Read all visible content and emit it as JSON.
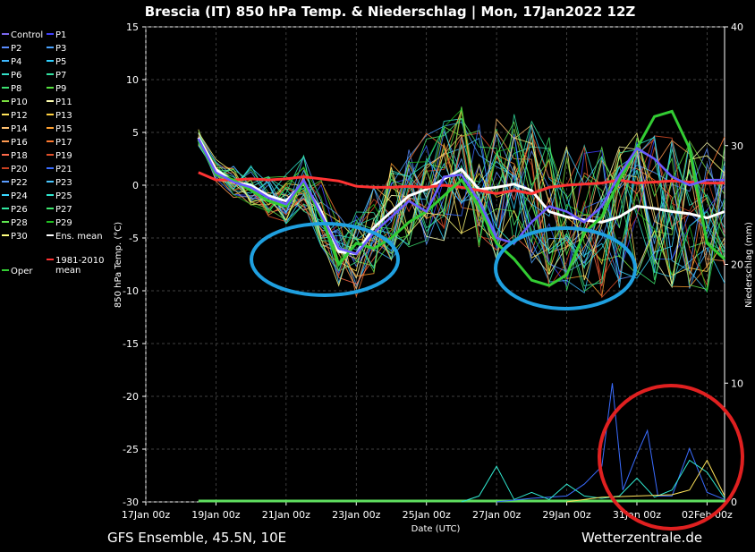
{
  "title": "Brescia  (IT)  850 hPa Temp. & Niederschlag | Mon, 17Jan2022 12Z",
  "footer_left": "GFS Ensemble, 45.5N, 10E",
  "footer_right": "Wetterzentrale.de",
  "legend": [
    {
      "label": "Control",
      "color": "#7b68ee"
    },
    {
      "label": "P1",
      "color": "#3f3fff"
    },
    {
      "label": "P2",
      "color": "#5a8cff"
    },
    {
      "label": "P3",
      "color": "#4aa3ff"
    },
    {
      "label": "P4",
      "color": "#3fb8ff"
    },
    {
      "label": "P5",
      "color": "#2fd0ff"
    },
    {
      "label": "P6",
      "color": "#33e0c8"
    },
    {
      "label": "P7",
      "color": "#33e0a0"
    },
    {
      "label": "P8",
      "color": "#3ce070"
    },
    {
      "label": "P9",
      "color": "#56e040"
    },
    {
      "label": "P10",
      "color": "#7be040"
    },
    {
      "label": "P11",
      "color": "#ffffb0"
    },
    {
      "label": "P12",
      "color": "#ffe45a"
    },
    {
      "label": "P13",
      "color": "#ffd040"
    },
    {
      "label": "P14",
      "color": "#ffc070"
    },
    {
      "label": "P15",
      "color": "#ffa030"
    },
    {
      "label": "P16",
      "color": "#ff9a50"
    },
    {
      "label": "P17",
      "color": "#ff7a30"
    },
    {
      "label": "P18",
      "color": "#ff6a4a"
    },
    {
      "label": "P19",
      "color": "#e0502a"
    },
    {
      "label": "P20",
      "color": "#c84020"
    },
    {
      "label": "P21",
      "color": "#3a6cff"
    },
    {
      "label": "P22",
      "color": "#5a9cff"
    },
    {
      "label": "P23",
      "color": "#4ac8ff"
    },
    {
      "label": "P24",
      "color": "#3ad8ff"
    },
    {
      "label": "P25",
      "color": "#30e8d0"
    },
    {
      "label": "P26",
      "color": "#30e8a0"
    },
    {
      "label": "P27",
      "color": "#40e870"
    },
    {
      "label": "P28",
      "color": "#60e850"
    },
    {
      "label": "P29",
      "color": "#20c020"
    },
    {
      "label": "P30",
      "color": "#ffff80"
    },
    {
      "label": "Ens. mean",
      "color": "#ffffff"
    },
    {
      "label": "Oper",
      "color": "#33cc33"
    },
    {
      "label": "1981-2010 mean",
      "color": "#ff3333"
    }
  ],
  "chart_data": {
    "type": "line",
    "title": "Brescia  (IT)  850 hPa Temp. & Niederschlag | Mon, 17Jan2022 12Z",
    "xlabel": "Date (UTC)",
    "ylabel_left": "850 hPa Temp. (°C)",
    "ylabel_right": "Niederschlag (mm)",
    "xlim_days": [
      0,
      16.5
    ],
    "x_ticks": [
      "17Jan 00z",
      "19Jan 00z",
      "21Jan 00z",
      "23Jan 00z",
      "25Jan 00z",
      "27Jan 00z",
      "29Jan 00z",
      "31Jan 00z",
      "02Feb 00z"
    ],
    "ylim_left": [
      -30,
      15
    ],
    "y_ticks_left": [
      "15",
      "10",
      "5",
      "0",
      "-5",
      "-10",
      "-15",
      "-20",
      "-25",
      "-30"
    ],
    "ylim_right": [
      0,
      40
    ],
    "y_ticks_right": [
      "40",
      "30",
      "20",
      "10",
      "0"
    ],
    "grid": true,
    "series": [
      {
        "name": "Ens. mean",
        "color": "#ffffff",
        "x": [
          1.5,
          2,
          2.5,
          3,
          3.5,
          4,
          4.5,
          5,
          5.5,
          6,
          6.5,
          7,
          7.5,
          8,
          8.5,
          9,
          9.5,
          10,
          10.5,
          11,
          11.5,
          12,
          12.5,
          13,
          13.5,
          14,
          14.5,
          15,
          15.5,
          16,
          16.5
        ],
        "y": [
          4.5,
          1.5,
          0.3,
          0.0,
          -1.0,
          -1.5,
          0.2,
          -2.5,
          -6.3,
          -6.5,
          -4.0,
          -2.5,
          -1.0,
          -0.4,
          0.6,
          1.5,
          -0.4,
          -0.2,
          0.1,
          -0.5,
          -2.5,
          -3.0,
          -3.3,
          -3.5,
          -3.0,
          -2.0,
          -2.2,
          -2.5,
          -2.7,
          -3.1,
          -2.5
        ]
      },
      {
        "name": "1981-2010 mean",
        "color": "#ff3333",
        "x": [
          1.5,
          2,
          2.5,
          3,
          3.5,
          4,
          4.5,
          5,
          5.5,
          6,
          6.5,
          7,
          7.5,
          8,
          8.5,
          9,
          9.5,
          10,
          10.5,
          11,
          11.5,
          12,
          12.5,
          13,
          13.5,
          14,
          14.5,
          15,
          15.5,
          16,
          16.5
        ],
        "y": [
          1.2,
          0.5,
          0.5,
          0.6,
          0.5,
          0.6,
          0.8,
          0.6,
          0.4,
          -0.1,
          -0.2,
          -0.2,
          -0.1,
          -0.2,
          0.0,
          -0.2,
          -0.5,
          -0.8,
          -0.5,
          -0.8,
          -0.2,
          0.0,
          0.1,
          0.2,
          0.5,
          0.2,
          0.3,
          0.4,
          0.3,
          0.2,
          0.2
        ]
      },
      {
        "name": "Oper",
        "color": "#33cc33",
        "x": [
          1.5,
          2,
          2.5,
          3,
          3.5,
          4,
          4.5,
          5,
          5.5,
          6,
          6.5,
          7,
          7.5,
          8,
          8.5,
          9,
          9.5,
          10,
          10.5,
          11,
          11.5,
          12,
          12.5,
          13,
          13.5,
          14,
          14.5,
          15,
          15.5,
          16,
          16.5
        ],
        "y": [
          4.3,
          1.0,
          0.5,
          -0.5,
          -1.5,
          -2.0,
          0.3,
          -3.0,
          -7.5,
          -5.5,
          -6.0,
          -5.0,
          -3.5,
          -2.5,
          -1.0,
          0.5,
          -2.0,
          -5.5,
          -7.0,
          -9.0,
          -9.5,
          -8.5,
          -4.5,
          -3.0,
          0.5,
          3.5,
          6.5,
          7.0,
          3.5,
          -5.5,
          -7.0
        ]
      },
      {
        "name": "Control",
        "color": "#6a5aff",
        "x": [
          1.5,
          2,
          2.5,
          3,
          3.5,
          4,
          4.5,
          5,
          5.5,
          6,
          6.5,
          7,
          7.5,
          8,
          8.5,
          9,
          9.5,
          10,
          10.5,
          11,
          11.5,
          12,
          12.5,
          13,
          13.5,
          14,
          14.5,
          15,
          15.5,
          16,
          16.5
        ],
        "y": [
          4.4,
          1.2,
          0.3,
          -0.2,
          -1.2,
          -1.8,
          0.5,
          -2.8,
          -6.0,
          -6.5,
          -4.5,
          -3.0,
          -1.5,
          -2.5,
          0.8,
          1.0,
          -1.5,
          -5.0,
          -5.5,
          -3.5,
          -2.0,
          -2.5,
          -3.5,
          -2.0,
          1.0,
          3.5,
          2.5,
          0.8,
          0.0,
          0.5,
          0.5
        ]
      }
    ],
    "precipitation_max": [
      {
        "name": "P21",
        "color": "#3a6cff",
        "x": [
          10,
          11,
          12,
          12.5,
          13,
          13.3,
          13.6,
          14,
          14.3,
          14.6,
          15,
          15.5,
          16,
          16.5
        ],
        "y": [
          0,
          0.3,
          0.5,
          1.5,
          3.0,
          10.0,
          1.0,
          4.0,
          6.0,
          0.5,
          0.5,
          4.5,
          0.8,
          0.2
        ]
      },
      {
        "name": "P25",
        "color": "#30e8d0",
        "x": [
          9,
          9.5,
          10,
          10.5,
          11,
          11.5,
          12,
          12.5,
          13,
          13.5,
          14,
          14.5,
          15,
          15.5,
          16,
          16.5
        ],
        "y": [
          0,
          0.5,
          3.0,
          0.2,
          0.8,
          0.2,
          1.5,
          0.5,
          0.3,
          0.5,
          2.0,
          0.4,
          1.0,
          3.5,
          2.5,
          0.3
        ]
      },
      {
        "name": "P12",
        "color": "#ffe45a",
        "x": [
          12,
          13,
          14,
          15,
          15.5,
          16,
          16.5
        ],
        "y": [
          0,
          0.4,
          0.5,
          0.6,
          1.0,
          3.5,
          0.5
        ]
      }
    ]
  }
}
